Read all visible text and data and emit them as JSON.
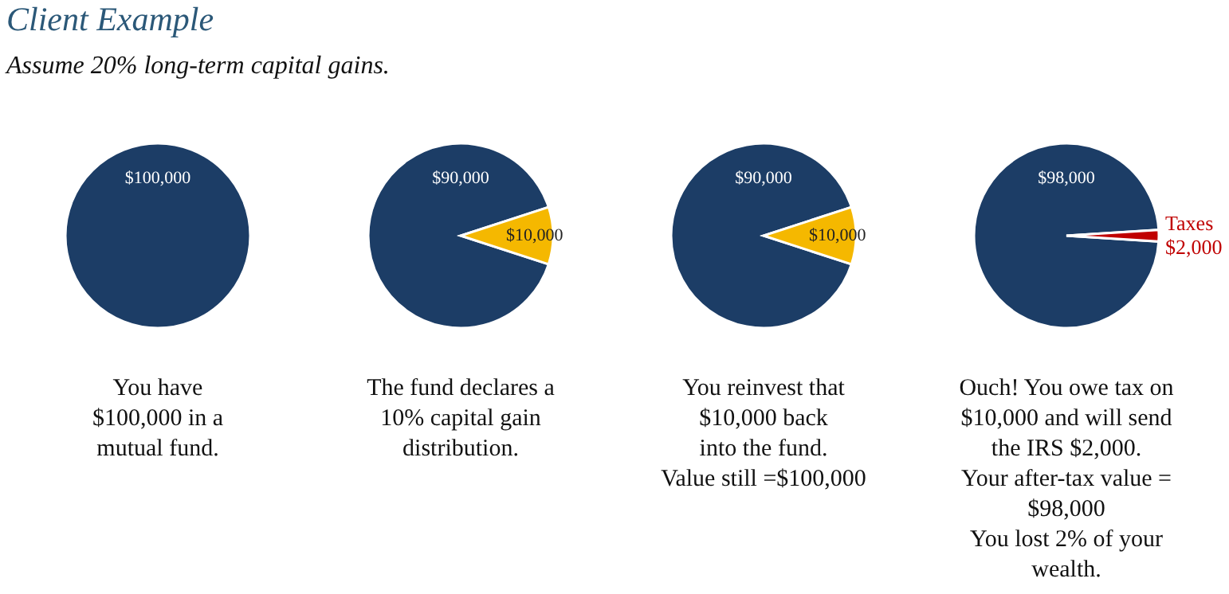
{
  "chart_data": [
    {
      "type": "pie",
      "title": "Client Example",
      "subtitle": "Assume 20% long-term capital gains.",
      "categories": [
        null
      ],
      "values": [
        100000
      ],
      "colors": [
        "#1c3d66"
      ],
      "value_labels": [
        "$100,000"
      ],
      "annotations": [
        "You have",
        "$100,000 in a",
        "mutual fund."
      ]
    },
    {
      "type": "pie",
      "categories": [
        null,
        null
      ],
      "values": [
        90000,
        10000
      ],
      "colors": [
        "#1c3d66",
        "#f5b800"
      ],
      "value_labels": [
        "$90,000",
        "$10,000"
      ],
      "annotations": [
        "The fund declares a",
        "10% capital gain",
        "distribution."
      ]
    },
    {
      "type": "pie",
      "categories": [
        null,
        null
      ],
      "values": [
        90000,
        10000
      ],
      "colors": [
        "#1c3d66",
        "#f5b800"
      ],
      "value_labels": [
        "$90,000",
        "$10,000"
      ],
      "annotations": [
        "You reinvest that",
        "$10,000 back",
        "into the fund.",
        "Value still =$100,000"
      ]
    },
    {
      "type": "pie",
      "categories": [
        null,
        "Taxes"
      ],
      "values": [
        98000,
        2000
      ],
      "colors": [
        "#1c3d66",
        "#c00000"
      ],
      "value_labels": [
        "$98,000",
        "$2,000"
      ],
      "annotations": [
        "Ouch! You owe tax on",
        "$10,000 and will send",
        "the IRS $2,000.",
        "Your after-tax value =",
        "$98,000",
        "You lost 2% of your",
        "wealth."
      ]
    }
  ]
}
